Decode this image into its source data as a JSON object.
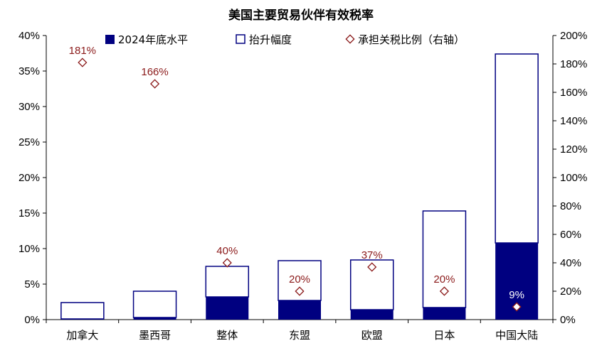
{
  "chart_data": {
    "type": "bar",
    "title": "美国主要贸易伙伴有效税率",
    "categories": [
      "加拿大",
      "墨西哥",
      "整体",
      "东盟",
      "欧盟",
      "日本",
      "中国大陆"
    ],
    "series": [
      {
        "name": "2024年底水平",
        "kind": "stacked-bar",
        "axis": "left",
        "values": [
          0.1,
          0.3,
          3.2,
          2.7,
          1.4,
          1.7,
          10.8
        ]
      },
      {
        "name": "抬升幅度",
        "kind": "stacked-bar",
        "axis": "left",
        "values": [
          2.3,
          3.7,
          4.3,
          5.6,
          7.0,
          13.6,
          26.6
        ]
      },
      {
        "name": "承担关税比例（右轴）",
        "kind": "scatter",
        "axis": "right",
        "values": [
          181,
          166,
          40,
          20,
          37,
          20,
          9
        ],
        "labels": [
          "181%",
          "166%",
          "40%",
          "20%",
          "37%",
          "20%",
          "9%"
        ]
      }
    ],
    "y_left": {
      "min": 0,
      "max": 40,
      "ticks": [
        "0%",
        "5%",
        "10%",
        "15%",
        "20%",
        "25%",
        "30%",
        "35%",
        "40%"
      ]
    },
    "y_right": {
      "min": 0,
      "max": 200,
      "ticks": [
        "0%",
        "20%",
        "40%",
        "60%",
        "80%",
        "100%",
        "120%",
        "140%",
        "160%",
        "180%",
        "200%"
      ]
    },
    "grid": false,
    "legend_position": "top",
    "colors": {
      "base": "#000080",
      "increase_fill": "#ffffff",
      "increase_stroke": "#000080",
      "marker": "#8b1a1a",
      "label": "#8b1a1a",
      "label_on_dark": "#ffffff"
    }
  }
}
